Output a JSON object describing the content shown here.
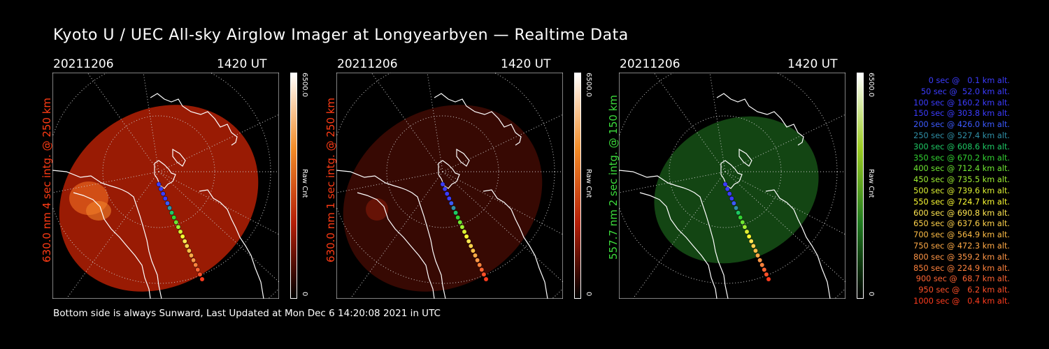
{
  "title": "Kyoto U / UEC All-sky Airglow Imager at Longyearbyen — Realtime Data",
  "footer": "Bottom side is always Sunward, Last Updated at Mon Dec  6 14:20:08 2021 in UTC",
  "panels": [
    {
      "date": "20211206",
      "time": "1420 UT",
      "vertical_label": "630.0 nm 4 sec intg. @ 250 km",
      "label_color": "#ff3b14",
      "cb_max": "6500.0",
      "cb_min": "0",
      "cb_unit": "Raw Cnt",
      "cb_colors": [
        "#ffffff",
        "#f28c28",
        "#b41e08",
        "#000000"
      ],
      "intensity": "bright"
    },
    {
      "date": "20211206",
      "time": "1420 UT",
      "vertical_label": "630.0 nm 1 sec intg. @ 250 km",
      "label_color": "#ff3b14",
      "cb_max": "6500.0",
      "cb_min": "0",
      "cb_unit": "Raw Cnt",
      "cb_colors": [
        "#ffffff",
        "#f28c28",
        "#b41e08",
        "#000000"
      ],
      "intensity": "dim"
    },
    {
      "date": "20211206",
      "time": "1420 UT",
      "vertical_label": "557.7 nm 2 sec intg. @ 150 km",
      "label_color": "#3cdc3c",
      "cb_max": "6500.0",
      "cb_min": "0",
      "cb_unit": "Raw Cnt",
      "cb_colors": [
        "#ffffff",
        "#9ccc22",
        "#1f7a1f",
        "#000000"
      ],
      "intensity": "green"
    }
  ],
  "legend": [
    {
      "text": "  0 sec @   0.1 km alt.",
      "color": "#3c3cff"
    },
    {
      "text": " 50 sec @  52.0 km alt.",
      "color": "#3c3cff"
    },
    {
      "text": "100 sec @ 160.2 km alt.",
      "color": "#3c3cff"
    },
    {
      "text": "150 sec @ 303.8 km alt.",
      "color": "#3c3cff"
    },
    {
      "text": "200 sec @ 426.0 km alt.",
      "color": "#3c5aff"
    },
    {
      "text": "250 sec @ 527.4 km alt.",
      "color": "#2f8fa6"
    },
    {
      "text": "300 sec @ 608.6 km alt.",
      "color": "#1ec864"
    },
    {
      "text": "350 sec @ 670.2 km alt.",
      "color": "#32d232"
    },
    {
      "text": "400 sec @ 712.4 km alt.",
      "color": "#6ee632"
    },
    {
      "text": "450 sec @ 735.5 km alt.",
      "color": "#a0f032"
    },
    {
      "text": "500 sec @ 739.6 km alt.",
      "color": "#dcf032"
    },
    {
      "text": "550 sec @ 724.7 km alt.",
      "color": "#fafa32"
    },
    {
      "text": "600 sec @ 690.8 km alt.",
      "color": "#ffe650"
    },
    {
      "text": "650 sec @ 637.6 km alt.",
      "color": "#ffd24b"
    },
    {
      "text": "700 sec @ 564.9 km alt.",
      "color": "#ffbe46"
    },
    {
      "text": "750 sec @ 472.3 km alt.",
      "color": "#ffaa46"
    },
    {
      "text": "800 sec @ 359.2 km alt.",
      "color": "#ff9646"
    },
    {
      "text": "850 sec @ 224.9 km alt.",
      "color": "#ff823c"
    },
    {
      "text": "900 sec @  68.7 km alt.",
      "color": "#ff6432"
    },
    {
      "text": "950 sec @   6.2 km alt.",
      "color": "#ff5028"
    },
    {
      "text": "1000 sec @   0.4 km alt.",
      "color": "#ff3c1e"
    }
  ]
}
